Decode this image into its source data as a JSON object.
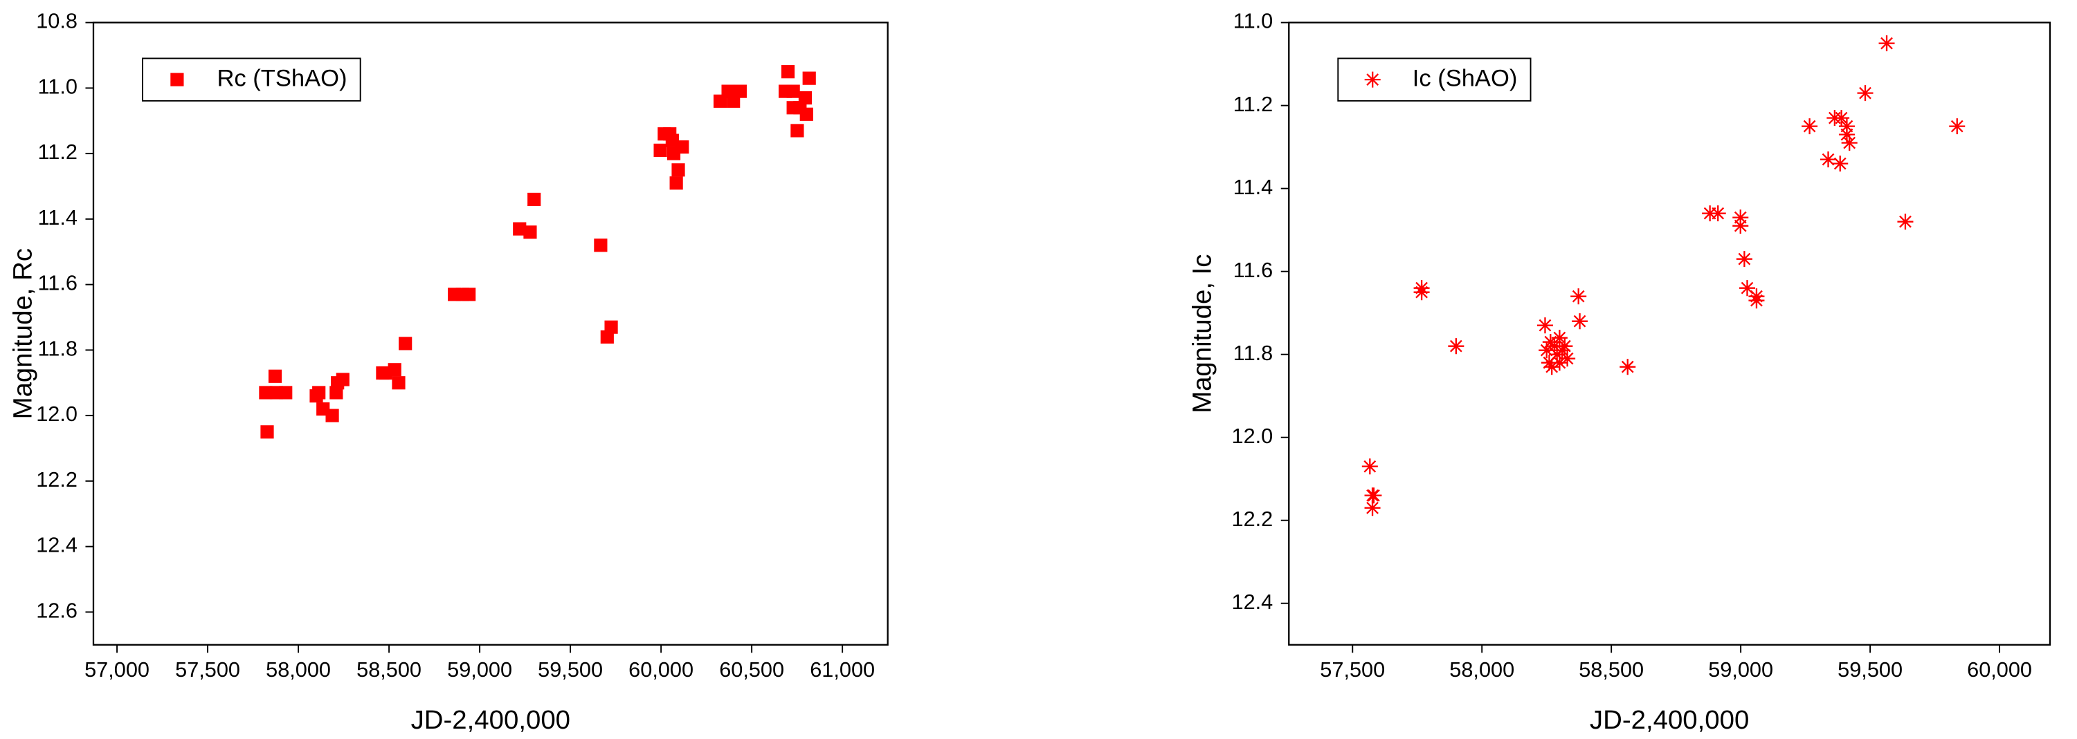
{
  "chart_data": [
    {
      "type": "scatter",
      "xlabel": "JD-2,400,000",
      "ylabel": "Magnitude, Rc",
      "xlim": [
        56870,
        61250
      ],
      "ylim": [
        10.8,
        12.7
      ],
      "y_inverted": true,
      "legend": "upper left",
      "xticks": [
        {
          "value": 57000,
          "label": "57,000"
        },
        {
          "value": 57500,
          "label": "57,500"
        },
        {
          "value": 58000,
          "label": "58,000"
        },
        {
          "value": 58500,
          "label": "58,500"
        },
        {
          "value": 59000,
          "label": "59,000"
        },
        {
          "value": 59500,
          "label": "59,500"
        },
        {
          "value": 60000,
          "label": "60,000"
        },
        {
          "value": 60500,
          "label": "60,500"
        },
        {
          "value": 61000,
          "label": "61,000"
        }
      ],
      "yticks": [
        10.8,
        {
          "value": 11.0,
          "label": "11.0"
        },
        11.2,
        11.4,
        11.6,
        11.8,
        {
          "value": 12.0,
          "label": "12.0"
        },
        12.2,
        12.4,
        12.6
      ],
      "series": [
        {
          "name": "Rc (TShAO)",
          "color": "#ff0000",
          "marker": "square",
          "x": [
            57820,
            57828,
            57872,
            57879,
            57930,
            58099,
            58113,
            58136,
            58187,
            58209,
            58216,
            58245,
            58465,
            58480,
            58531,
            58553,
            58590,
            58861,
            58905,
            58941,
            59220,
            59278,
            59300,
            59667,
            59703,
            59725,
            59996,
            60018,
            60048,
            60070,
            60095,
            60084,
            60117,
            60062,
            60326,
            60370,
            60399,
            60436,
            60700,
            60685,
            60729,
            60729,
            60751,
            60766,
            60795,
            60802,
            60817
          ],
          "y": [
            11.93,
            12.05,
            11.88,
            11.93,
            11.93,
            11.94,
            11.93,
            11.98,
            12.0,
            11.93,
            11.9,
            11.89,
            11.87,
            11.87,
            11.86,
            11.9,
            11.78,
            11.63,
            11.63,
            11.63,
            11.43,
            11.44,
            11.34,
            11.48,
            11.76,
            11.73,
            11.19,
            11.14,
            11.14,
            11.2,
            11.25,
            11.29,
            11.18,
            11.16,
            11.04,
            11.01,
            11.04,
            11.01,
            10.95,
            11.01,
            11.01,
            11.06,
            11.13,
            11.06,
            11.03,
            11.08,
            10.97
          ]
        }
      ]
    },
    {
      "type": "scatter",
      "xlabel": "JD-2,400,000",
      "ylabel": "Magnitude, Ic",
      "xlim": [
        57254,
        60195
      ],
      "ylim": [
        11.0,
        12.5
      ],
      "y_inverted": true,
      "legend": "upper left",
      "xticks": [
        {
          "value": 57500,
          "label": "57,500"
        },
        {
          "value": 58000,
          "label": "58,000"
        },
        {
          "value": 58500,
          "label": "58,500"
        },
        {
          "value": 59000,
          "label": "59,000"
        },
        {
          "value": 59500,
          "label": "59,500"
        },
        {
          "value": 60000,
          "label": "60,000"
        }
      ],
      "yticks": [
        {
          "value": 11.0,
          "label": "11.0"
        },
        11.2,
        11.4,
        11.6,
        11.8,
        {
          "value": 12.0,
          "label": "12.0"
        },
        12.2,
        12.4
      ],
      "series": [
        {
          "name": "Ic (ShAO)",
          "color": "#ff0000",
          "marker": "asterisk",
          "x": [
            57567,
            57577,
            57577,
            57582,
            57767,
            57767,
            57900,
            58244,
            58250,
            58260,
            58270,
            58280,
            58290,
            58300,
            58310,
            58320,
            58330,
            58265,
            58300,
            58373,
            58378,
            58563,
            58881,
            58912,
            58999,
            58999,
            59014,
            59025,
            59061,
            59061,
            59266,
            59338,
            59363,
            59384,
            59389,
            59410,
            59410,
            59420,
            59481,
            59564,
            59636,
            59836
          ],
          "y": [
            12.07,
            12.14,
            12.17,
            12.14,
            11.64,
            11.65,
            11.78,
            11.73,
            11.79,
            11.82,
            11.83,
            11.78,
            11.8,
            11.82,
            11.79,
            11.78,
            11.81,
            11.77,
            11.76,
            11.66,
            11.72,
            11.83,
            11.46,
            11.46,
            11.47,
            11.49,
            11.57,
            11.64,
            11.66,
            11.67,
            11.25,
            11.33,
            11.23,
            11.34,
            11.23,
            11.25,
            11.27,
            11.29,
            11.17,
            11.05,
            11.48,
            11.25
          ]
        }
      ]
    }
  ]
}
